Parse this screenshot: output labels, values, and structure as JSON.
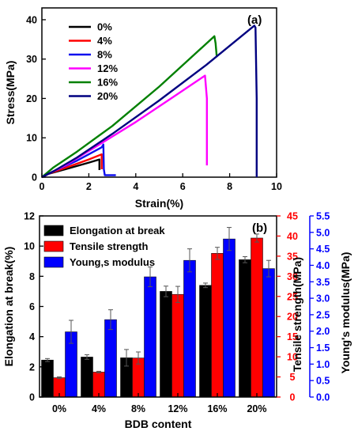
{
  "chart_data": [
    {
      "type": "line",
      "panel_label": "(a)",
      "xlabel": "Strain(%)",
      "ylabel": "Stress(MPa)",
      "xlim": [
        0,
        10
      ],
      "ylim": [
        0,
        43
      ],
      "xticks": [
        0,
        2,
        4,
        6,
        8,
        10
      ],
      "yticks": [
        0,
        10,
        20,
        30,
        40
      ],
      "grid": false,
      "legend_position": "top-left",
      "series": [
        {
          "name": "0%",
          "color": "#000000",
          "x": [
            0,
            0.2,
            1.0,
            2.0,
            2.45,
            2.45
          ],
          "y": [
            0,
            0.7,
            2.0,
            3.7,
            4.5,
            1.8
          ]
        },
        {
          "name": "4%",
          "color": "#ff0000",
          "x": [
            0,
            0.3,
            1.2,
            2.0,
            2.55,
            2.55
          ],
          "y": [
            0,
            0.9,
            2.8,
            4.5,
            5.8,
            2.0
          ]
        },
        {
          "name": "8%",
          "color": "#1010ee",
          "x": [
            0,
            0.5,
            1.5,
            2.55,
            2.62,
            2.64,
            2.68,
            2.8,
            3.15
          ],
          "y": [
            0,
            1.5,
            4.2,
            7.6,
            8.3,
            2.0,
            0.5,
            0.5,
            0.5
          ]
        },
        {
          "name": "12%",
          "color": "#ff00ff",
          "x": [
            0,
            1.0,
            2.5,
            4.0,
            5.5,
            6.95,
            7.03,
            7.03
          ],
          "y": [
            0,
            3.0,
            8.5,
            14.0,
            20.0,
            25.8,
            20.0,
            3.0
          ]
        },
        {
          "name": "16%",
          "color": "#008000",
          "x": [
            0,
            0.5,
            1.5,
            3.0,
            5.0,
            7.35,
            7.4,
            7.45
          ],
          "y": [
            0,
            2.5,
            6.5,
            13.0,
            23.0,
            35.8,
            34.0,
            30.5
          ]
        },
        {
          "name": "20%",
          "color": "#000080",
          "x": [
            0,
            0.5,
            1.5,
            3.0,
            5.0,
            7.0,
            9.05,
            9.1,
            9.15,
            9.15
          ],
          "y": [
            0,
            1.5,
            5.0,
            11.0,
            19.5,
            28.5,
            38.5,
            38.0,
            20.0,
            0.0
          ]
        }
      ]
    },
    {
      "type": "bar",
      "panel_label": "(b)",
      "xlabel": "BDB content",
      "categories": [
        "0%",
        "4%",
        "8%",
        "12%",
        "16%",
        "20%"
      ],
      "legend_position": "top-left",
      "grid": false,
      "axes": {
        "left": {
          "label": "Elongation at break(%)",
          "ylim": [
            0,
            12
          ],
          "ticks": [
            0,
            2,
            4,
            6,
            8,
            10,
            12
          ],
          "color": "#000000"
        },
        "right1": {
          "label": "Tensile strength(MPa)",
          "ylim": [
            0,
            45
          ],
          "ticks": [
            0,
            5,
            10,
            15,
            20,
            25,
            30,
            35,
            40,
            45
          ],
          "color": "#ff0000"
        },
        "right2": {
          "label": "Young's modulus(MPa)",
          "ylim": [
            0,
            5.5
          ],
          "ticks": [
            "0.0",
            "0.5",
            "1.0",
            "1.5",
            "2.0",
            "2.5",
            "3.0",
            "3.5",
            "4.0",
            "4.5",
            "5.0",
            "5.5"
          ],
          "color": "#0000ff"
        }
      },
      "series": [
        {
          "name": "Elongation at break",
          "axis": "left",
          "color": "#000000",
          "values": [
            2.45,
            2.65,
            2.6,
            7.0,
            7.4,
            9.1
          ],
          "errors": [
            0.1,
            0.15,
            0.55,
            0.35,
            0.15,
            0.2
          ]
        },
        {
          "name": "Tensile strength",
          "axis": "right1",
          "color": "#ff0000",
          "values": [
            4.8,
            6.2,
            9.7,
            25.5,
            35.7,
            39.5
          ],
          "errors": [
            0.2,
            0.2,
            1.5,
            2.0,
            1.5,
            1.0
          ]
        },
        {
          "name": "Young,s modulus",
          "axis": "right2",
          "color": "#0000ff",
          "values": [
            1.98,
            2.35,
            3.65,
            4.15,
            4.8,
            3.9
          ],
          "errors": [
            0.35,
            0.3,
            0.3,
            0.35,
            0.35,
            0.25
          ]
        }
      ]
    }
  ]
}
